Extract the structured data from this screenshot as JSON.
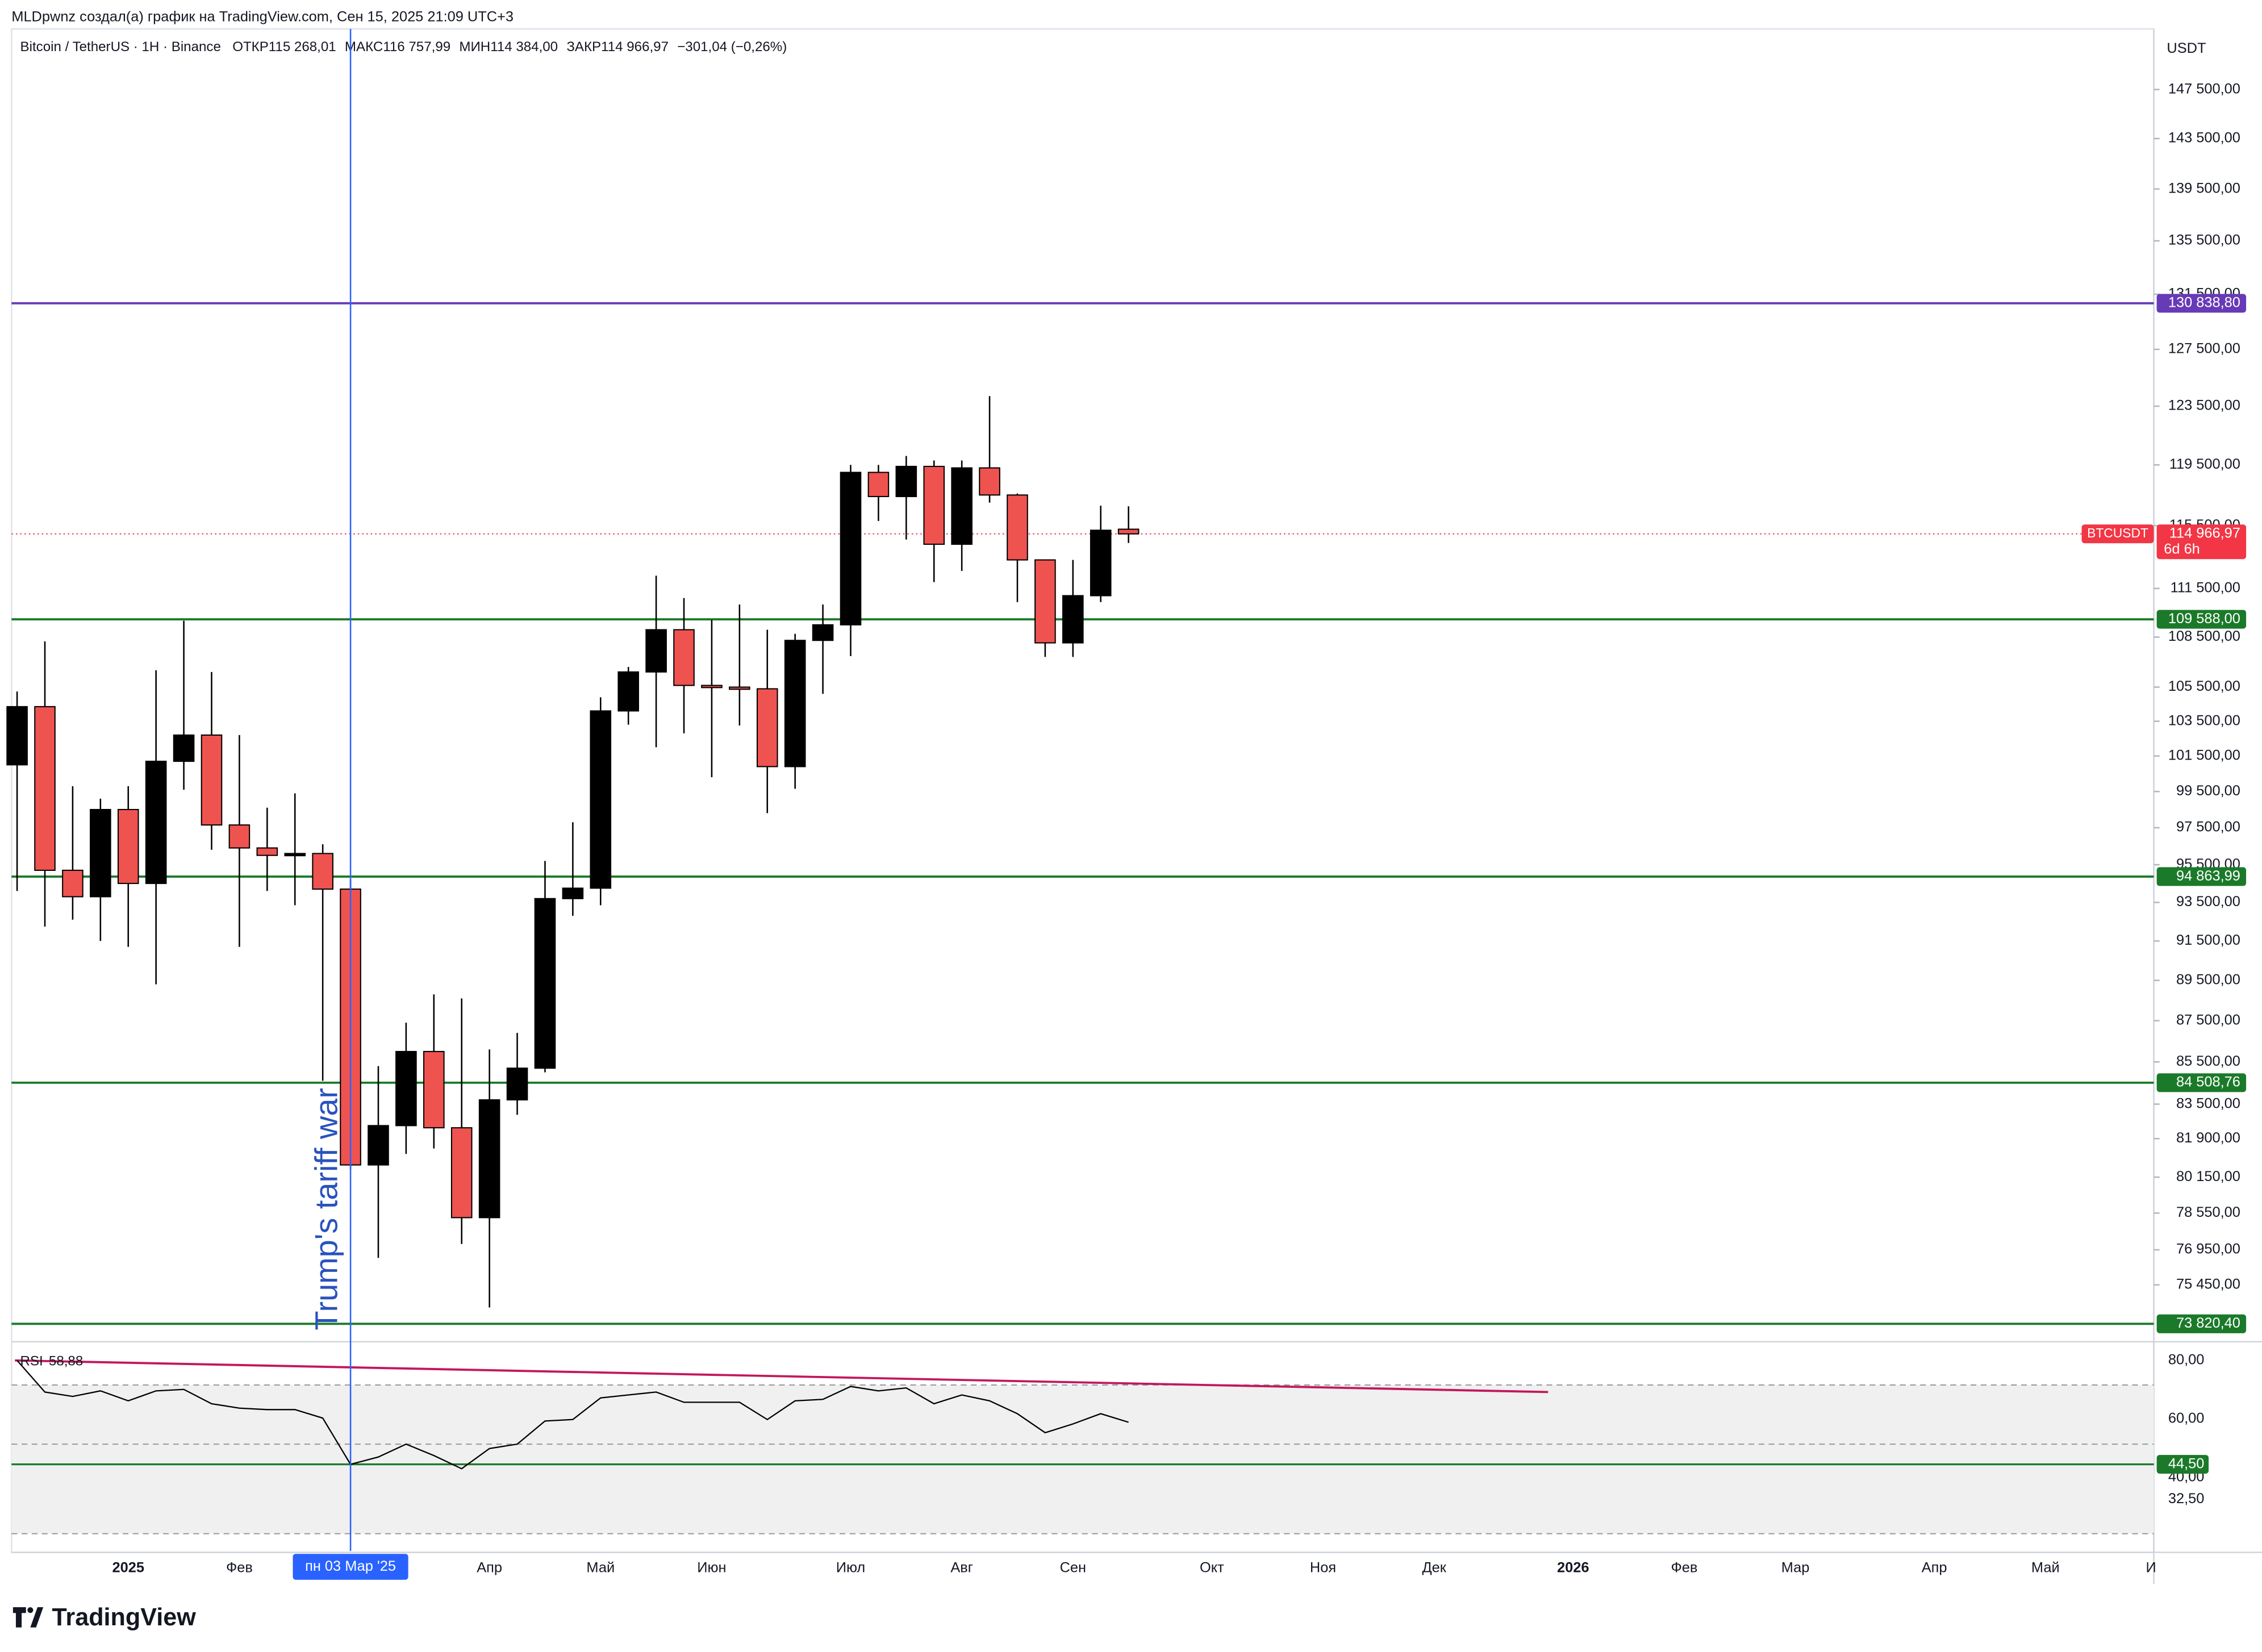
{
  "header": "MLDpwnz создал(а) график на TradingView.com, Сен 15, 2025 21:09 UTC+3",
  "footer": {
    "brand": "TradingView"
  },
  "chart_data": {
    "type": "candlestick",
    "title": "Bitcoin / TetherUS · 1H · Binance",
    "legend_fields": [
      {
        "label": "ОТКР",
        "value": "115 268,01"
      },
      {
        "label": "МАКС",
        "value": "116 757,99"
      },
      {
        "label": "МИН",
        "value": "114 384,00"
      },
      {
        "label": "ЗАКР",
        "value": "114 966,97"
      }
    ],
    "legend_change": "−301,04 (−0,26%)",
    "currency": "USDT",
    "categories": [
      null,
      null,
      null,
      null,
      null,
      null,
      null,
      null,
      null,
      null,
      null,
      null,
      null,
      null,
      null,
      null,
      null,
      null,
      null,
      null,
      null,
      null,
      null,
      null,
      null,
      null,
      null,
      null,
      null,
      null,
      null,
      null,
      null,
      null,
      null,
      null,
      null,
      null,
      null,
      null,
      null
    ],
    "open": [
      101000,
      104350,
      95200,
      93800,
      98500,
      94500,
      101200,
      102700,
      97650,
      96400,
      96000,
      96100,
      94200,
      80700,
      82500,
      86000,
      82400,
      78350,
      83700,
      85200,
      93700,
      94250,
      104100,
      106400,
      108950,
      105600,
      105500,
      105400,
      100900,
      108300,
      109250,
      119000,
      117400,
      119400,
      114300,
      119300,
      117500,
      113300,
      108150,
      111050,
      115268.01
    ],
    "high": [
      105240,
      108240,
      99800,
      99100,
      99800,
      106500,
      109500,
      106400,
      102700,
      98600,
      99400,
      96600,
      94700,
      85300,
      87400,
      88800,
      88600,
      86100,
      86900,
      95700,
      97800,
      104900,
      106700,
      112300,
      110900,
      109560,
      110500,
      108950,
      108700,
      110500,
      119500,
      119500,
      120100,
      119800,
      119800,
      124200,
      117600,
      113300,
      113300,
      116800,
      116757.99
    ],
    "low": [
      94100,
      92240,
      92600,
      91500,
      91200,
      89300,
      99600,
      96300,
      91200,
      94100,
      93350,
      84600,
      80500,
      76600,
      81200,
      81450,
      77200,
      74500,
      83000,
      85000,
      92800,
      93350,
      103300,
      102000,
      102800,
      100300,
      103250,
      98300,
      99650,
      105100,
      107350,
      115800,
      114600,
      111900,
      112600,
      117000,
      110650,
      107300,
      107300,
      110650,
      114384
    ],
    "close": [
      104350,
      95200,
      93800,
      98500,
      94500,
      101200,
      102700,
      97650,
      96400,
      96000,
      96100,
      94200,
      80700,
      82500,
      86000,
      82400,
      78350,
      83700,
      85200,
      93700,
      94250,
      104100,
      106400,
      108950,
      105600,
      105500,
      105400,
      100900,
      108300,
      109250,
      119000,
      117400,
      119400,
      114300,
      119300,
      117500,
      113300,
      108150,
      111050,
      115200,
      114966.97
    ],
    "up_color": "#000000",
    "down_color": "#ef5350",
    "log_scale": true,
    "ylim": [
      73200,
      152600
    ],
    "yticks": [
      {
        "value": 147500,
        "label": "147 500,00"
      },
      {
        "value": 143500,
        "label": "143 500,00"
      },
      {
        "value": 139500,
        "label": "139 500,00"
      },
      {
        "value": 135500,
        "label": "135 500,00"
      },
      {
        "value": 131500,
        "label": "131 500,00"
      },
      {
        "value": 127500,
        "label": "127 500,00"
      },
      {
        "value": 123500,
        "label": "123 500,00"
      },
      {
        "value": 119500,
        "label": "119 500,00"
      },
      {
        "value": 115500,
        "label": "115 500,00"
      },
      {
        "value": 111500,
        "label": "111 500,00"
      },
      {
        "value": 108500,
        "label": "108 500,00"
      },
      {
        "value": 105500,
        "label": "105 500,00"
      },
      {
        "value": 103500,
        "label": "103 500,00"
      },
      {
        "value": 101500,
        "label": "101 500,00"
      },
      {
        "value": 99500,
        "label": "99 500,00"
      },
      {
        "value": 97500,
        "label": "97 500,00"
      },
      {
        "value": 95500,
        "label": "95 500,00"
      },
      {
        "value": 93500,
        "label": "93 500,00"
      },
      {
        "value": 91500,
        "label": "91 500,00"
      },
      {
        "value": 89500,
        "label": "89 500,00"
      },
      {
        "value": 87500,
        "label": "87 500,00"
      },
      {
        "value": 85500,
        "label": "85 500,00"
      },
      {
        "value": 83500,
        "label": "83 500,00"
      },
      {
        "value": 81900,
        "label": "81 900,00"
      },
      {
        "value": 80150,
        "label": "80 150,00"
      },
      {
        "value": 78550,
        "label": "78 550,00"
      },
      {
        "value": 76950,
        "label": "76 950,00"
      },
      {
        "value": 75450,
        "label": "75 450,00"
      }
    ],
    "xlim": [
      -0.2,
      76.9
    ],
    "xticks": [
      {
        "value": 4,
        "label": "2025"
      },
      {
        "value": 8,
        "label": "Фев"
      },
      {
        "value": 17,
        "label": "Апр"
      },
      {
        "value": 21,
        "label": "Май"
      },
      {
        "value": 25,
        "label": "Июн"
      },
      {
        "value": 30,
        "label": "Июл"
      },
      {
        "value": 34,
        "label": "Авг"
      },
      {
        "value": 38,
        "label": "Сен"
      },
      {
        "value": 43,
        "label": "Окт"
      },
      {
        "value": 47,
        "label": "Ноя"
      },
      {
        "value": 51,
        "label": "Дек"
      },
      {
        "value": 56,
        "label": "2026"
      },
      {
        "value": 60,
        "label": "Фев"
      },
      {
        "value": 64,
        "label": "Мар"
      },
      {
        "value": 69,
        "label": "Апр"
      },
      {
        "value": 73,
        "label": "Май"
      },
      {
        "value": 76.8,
        "label": "И"
      }
    ],
    "crosshair": {
      "x": 12,
      "label": "пн 03 Мар '25",
      "color": "#2962ff"
    },
    "hlines": [
      {
        "value": 130838.8,
        "label": "130 838,80",
        "color": "#673ab7"
      },
      {
        "value": 109588,
        "label": "109 588,00",
        "color": "#1b7a2a"
      },
      {
        "value": 94863.99,
        "label": "94 863,99",
        "color": "#1b7a2a"
      },
      {
        "value": 84508.76,
        "label": "84 508,76",
        "color": "#1b7a2a"
      },
      {
        "value": 73820.4,
        "label": "73 820,40",
        "color": "#1b7a2a"
      }
    ],
    "last_price": {
      "value": 114966.97,
      "label": "114 966,97",
      "symbol": "BTCUSDT",
      "countdown": "6d 6h",
      "color": "#f23645"
    },
    "annotation": {
      "text": "Trump's tariff war",
      "x": 12,
      "color": "#2a52be"
    },
    "rsi": {
      "name": "RSI",
      "color": "#000000",
      "values": [
        80,
        69.2,
        67.7,
        69.6,
        66.2,
        69.6,
        70.1,
        65.2,
        63.7,
        63.2,
        63.2,
        60.3,
        44.5,
        47,
        51.4,
        47.5,
        43,
        49.9,
        51.4,
        59.3,
        59.8,
        67.2,
        68.2,
        69.2,
        65.7,
        65.7,
        65.7,
        59.8,
        66.2,
        66.7,
        71.1,
        69.6,
        70.6,
        65.2,
        68.2,
        66.2,
        61.8,
        55.3,
        58.3,
        61.8,
        58.88
      ],
      "value_labels": [
        null,
        null,
        null,
        null,
        null,
        null,
        null,
        null,
        null,
        null,
        null,
        null,
        null,
        null,
        null,
        null,
        null,
        null,
        null,
        null,
        null,
        null,
        null,
        null,
        null,
        null,
        null,
        null,
        null,
        null,
        null,
        null,
        null,
        null,
        null,
        null,
        null,
        null,
        null,
        null,
        "58,88"
      ],
      "ylim": [
        14.9,
        84.9
      ],
      "yticks": [
        {
          "value": 80,
          "label": "80,00"
        },
        {
          "value": 60,
          "label": "60,00"
        },
        {
          "value": 40,
          "label": "40,00"
        },
        {
          "value": 32.5,
          "label": "32,50"
        }
      ],
      "bands": [
        71.6,
        51.4,
        20.8
      ],
      "level": {
        "value": 44.5,
        "label": "44,50",
        "color": "#1b7a2a"
      },
      "trendline": {
        "x": [
          -0.08,
          55.1
        ],
        "values": [
          80,
          69.2
        ],
        "color": "#c2185b"
      }
    }
  }
}
